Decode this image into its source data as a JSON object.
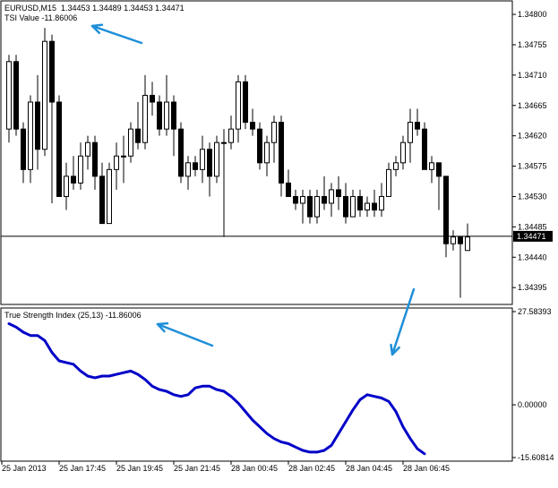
{
  "header": {
    "symbol": "EURUSD,M15",
    "ohlc": "1.34453 1.34489 1.34453 1.34471",
    "tsi_value_text": "TSI Value -11.86006"
  },
  "indicator_label": "True Strength Index (25,13) -11.86006",
  "colors": {
    "background": "#ffffff",
    "frame": "#000000",
    "bull_candle": "#ffffff",
    "bear_candle": "#000000",
    "tsi_line": "#0000c8",
    "annotation_arrow": "#1f8fd8",
    "price_marker": "#000000"
  },
  "chart_data": [
    {
      "type": "candlestick",
      "symbol": "EURUSD",
      "timeframe": "M15",
      "ylim": [
        1.3437,
        1.3482
      ],
      "ytick_values": [
        1.348,
        1.34755,
        1.3471,
        1.34665,
        1.3462,
        1.34575,
        1.3453,
        1.34485,
        1.3444,
        1.34395
      ],
      "ytick_labels": [
        "1.34800",
        "1.34755",
        "1.34710",
        "1.34665",
        "1.34620",
        "1.34575",
        "1.34530",
        "1.34485",
        "1.34440",
        "1.34395"
      ],
      "current_price": 1.34471,
      "current_price_label": "1.34471",
      "candles": [
        {
          "o": 1.3463,
          "h": 1.3474,
          "l": 1.3461,
          "c": 1.3473
        },
        {
          "o": 1.3473,
          "h": 1.3474,
          "l": 1.3462,
          "c": 1.3463
        },
        {
          "o": 1.3463,
          "h": 1.3464,
          "l": 1.3455,
          "c": 1.3457
        },
        {
          "o": 1.3457,
          "h": 1.3468,
          "l": 1.3455,
          "c": 1.3467
        },
        {
          "o": 1.3467,
          "h": 1.3471,
          "l": 1.3457,
          "c": 1.346
        },
        {
          "o": 1.346,
          "h": 1.3478,
          "l": 1.3459,
          "c": 1.3476
        },
        {
          "o": 1.3476,
          "h": 1.3477,
          "l": 1.3452,
          "c": 1.3467
        },
        {
          "o": 1.3467,
          "h": 1.3468,
          "l": 1.3453,
          "c": 1.3453
        },
        {
          "o": 1.3453,
          "h": 1.3458,
          "l": 1.3451,
          "c": 1.3456
        },
        {
          "o": 1.3456,
          "h": 1.3459,
          "l": 1.3454,
          "c": 1.3455
        },
        {
          "o": 1.3455,
          "h": 1.3461,
          "l": 1.3454,
          "c": 1.3459
        },
        {
          "o": 1.3459,
          "h": 1.3462,
          "l": 1.3457,
          "c": 1.3461
        },
        {
          "o": 1.3461,
          "h": 1.3462,
          "l": 1.3454,
          "c": 1.3456
        },
        {
          "o": 1.3456,
          "h": 1.3458,
          "l": 1.3449,
          "c": 1.3449
        },
        {
          "o": 1.3449,
          "h": 1.3458,
          "l": 1.3449,
          "c": 1.3457
        },
        {
          "o": 1.3457,
          "h": 1.3461,
          "l": 1.3454,
          "c": 1.3459
        },
        {
          "o": 1.3459,
          "h": 1.3462,
          "l": 1.3455,
          "c": 1.3459
        },
        {
          "o": 1.3459,
          "h": 1.3464,
          "l": 1.3458,
          "c": 1.3463
        },
        {
          "o": 1.3463,
          "h": 1.3467,
          "l": 1.346,
          "c": 1.3461
        },
        {
          "o": 1.3461,
          "h": 1.3471,
          "l": 1.346,
          "c": 1.3468
        },
        {
          "o": 1.3468,
          "h": 1.347,
          "l": 1.3465,
          "c": 1.3467
        },
        {
          "o": 1.3467,
          "h": 1.3468,
          "l": 1.3462,
          "c": 1.3463
        },
        {
          "o": 1.3463,
          "h": 1.3471,
          "l": 1.3462,
          "c": 1.3467
        },
        {
          "o": 1.3467,
          "h": 1.3468,
          "l": 1.3459,
          "c": 1.3463
        },
        {
          "o": 1.3463,
          "h": 1.3464,
          "l": 1.3455,
          "c": 1.3456
        },
        {
          "o": 1.3456,
          "h": 1.3459,
          "l": 1.3454,
          "c": 1.3458
        },
        {
          "o": 1.3458,
          "h": 1.3459,
          "l": 1.3456,
          "c": 1.3457
        },
        {
          "o": 1.3457,
          "h": 1.3462,
          "l": 1.3455,
          "c": 1.346
        },
        {
          "o": 1.346,
          "h": 1.3461,
          "l": 1.3453,
          "c": 1.3456
        },
        {
          "o": 1.3456,
          "h": 1.3462,
          "l": 1.3455,
          "c": 1.3461
        },
        {
          "o": 1.3461,
          "h": 1.3463,
          "l": 1.3447,
          "c": 1.3461
        },
        {
          "o": 1.3461,
          "h": 1.3465,
          "l": 1.346,
          "c": 1.3463
        },
        {
          "o": 1.3463,
          "h": 1.3471,
          "l": 1.3461,
          "c": 1.347
        },
        {
          "o": 1.347,
          "h": 1.3471,
          "l": 1.3463,
          "c": 1.3464
        },
        {
          "o": 1.3464,
          "h": 1.3466,
          "l": 1.3462,
          "c": 1.3463
        },
        {
          "o": 1.3463,
          "h": 1.3464,
          "l": 1.3457,
          "c": 1.3458
        },
        {
          "o": 1.3458,
          "h": 1.3462,
          "l": 1.3456,
          "c": 1.3461
        },
        {
          "o": 1.3461,
          "h": 1.3465,
          "l": 1.3458,
          "c": 1.3464
        },
        {
          "o": 1.3464,
          "h": 1.3465,
          "l": 1.3453,
          "c": 1.3455
        },
        {
          "o": 1.3455,
          "h": 1.3457,
          "l": 1.3453,
          "c": 1.3453
        },
        {
          "o": 1.3453,
          "h": 1.3454,
          "l": 1.3451,
          "c": 1.3452
        },
        {
          "o": 1.3452,
          "h": 1.3454,
          "l": 1.3449,
          "c": 1.3453
        },
        {
          "o": 1.3453,
          "h": 1.3454,
          "l": 1.3449,
          "c": 1.345
        },
        {
          "o": 1.345,
          "h": 1.3454,
          "l": 1.3449,
          "c": 1.3453
        },
        {
          "o": 1.3453,
          "h": 1.3456,
          "l": 1.3451,
          "c": 1.3452
        },
        {
          "o": 1.3452,
          "h": 1.3455,
          "l": 1.345,
          "c": 1.3454
        },
        {
          "o": 1.3454,
          "h": 1.3456,
          "l": 1.3451,
          "c": 1.3453
        },
        {
          "o": 1.3453,
          "h": 1.3455,
          "l": 1.3449,
          "c": 1.345
        },
        {
          "o": 1.345,
          "h": 1.3454,
          "l": 1.345,
          "c": 1.3453
        },
        {
          "o": 1.3453,
          "h": 1.3454,
          "l": 1.345,
          "c": 1.3451
        },
        {
          "o": 1.3451,
          "h": 1.3453,
          "l": 1.345,
          "c": 1.3452
        },
        {
          "o": 1.3452,
          "h": 1.3454,
          "l": 1.345,
          "c": 1.3451
        },
        {
          "o": 1.3451,
          "h": 1.3455,
          "l": 1.345,
          "c": 1.3453
        },
        {
          "o": 1.3453,
          "h": 1.3458,
          "l": 1.3453,
          "c": 1.3457
        },
        {
          "o": 1.3457,
          "h": 1.3459,
          "l": 1.3456,
          "c": 1.3458
        },
        {
          "o": 1.3458,
          "h": 1.3462,
          "l": 1.3457,
          "c": 1.3461
        },
        {
          "o": 1.3461,
          "h": 1.3466,
          "l": 1.3458,
          "c": 1.3464
        },
        {
          "o": 1.3464,
          "h": 1.3466,
          "l": 1.3462,
          "c": 1.3463
        },
        {
          "o": 1.3463,
          "h": 1.3464,
          "l": 1.3457,
          "c": 1.3457
        },
        {
          "o": 1.3457,
          "h": 1.3459,
          "l": 1.3455,
          "c": 1.3458
        },
        {
          "o": 1.3458,
          "h": 1.3458,
          "l": 1.3451,
          "c": 1.3456
        },
        {
          "o": 1.3456,
          "h": 1.3456,
          "l": 1.3444,
          "c": 1.3446
        },
        {
          "o": 1.3446,
          "h": 1.3448,
          "l": 1.3445,
          "c": 1.3447
        },
        {
          "o": 1.3447,
          "h": 1.3447,
          "l": 1.3438,
          "c": 1.3446
        },
        {
          "o": 1.3445,
          "h": 1.3449,
          "l": 1.3445,
          "c": 1.3447
        }
      ]
    },
    {
      "type": "line",
      "title": "True Strength Index (25,13)",
      "ylim": [
        -15.60814,
        27.58393
      ],
      "ytick_values": [
        27.58393,
        0.0,
        -15.60814
      ],
      "ytick_labels": [
        "27.58393",
        "0.00000",
        "-15.60814"
      ],
      "series": [
        {
          "name": "True Strength Index (25,13)",
          "values": [
            24.0,
            23.0,
            21.5,
            20.5,
            20.5,
            19.0,
            15.5,
            13.0,
            12.5,
            12.0,
            10.0,
            8.5,
            8.0,
            8.5,
            8.5,
            9.0,
            9.5,
            10.0,
            9.0,
            7.5,
            5.5,
            4.5,
            4.0,
            3.0,
            2.5,
            3.0,
            5.0,
            5.5,
            5.5,
            4.5,
            4.0,
            2.5,
            0.5,
            -2.0,
            -4.5,
            -6.5,
            -8.5,
            -10.0,
            -11.0,
            -11.5,
            -12.5,
            -13.5,
            -14.0,
            -14.0,
            -13.5,
            -12.0,
            -8.5,
            -5.0,
            -1.5,
            1.5,
            3.0,
            2.5,
            2.0,
            1.0,
            -2.0,
            -6.5,
            -10.0,
            -13.0,
            -14.5
          ]
        }
      ]
    }
  ],
  "x_axis": {
    "tick_labels": [
      "25 Jan 2013",
      "25 Jan 17:45",
      "25 Jan 19:45",
      "25 Jan 21:45",
      "28 Jan 00:45",
      "28 Jan 02:45",
      "28 Jan 04:45",
      "28 Jan 06:45"
    ],
    "tick_bar_index": [
      0,
      8,
      16,
      24,
      32,
      40,
      48,
      56
    ]
  }
}
